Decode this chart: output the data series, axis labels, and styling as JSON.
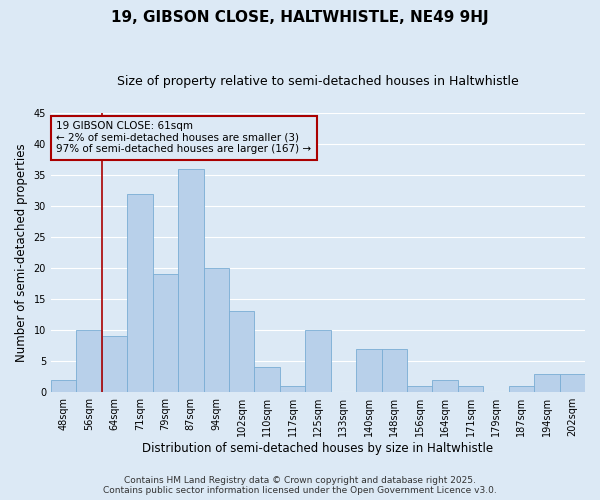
{
  "title": "19, GIBSON CLOSE, HALTWHISTLE, NE49 9HJ",
  "subtitle": "Size of property relative to semi-detached houses in Haltwhistle",
  "xlabel": "Distribution of semi-detached houses by size in Haltwhistle",
  "ylabel": "Number of semi-detached properties",
  "categories": [
    "48sqm",
    "56sqm",
    "64sqm",
    "71sqm",
    "79sqm",
    "87sqm",
    "94sqm",
    "102sqm",
    "110sqm",
    "117sqm",
    "125sqm",
    "133sqm",
    "140sqm",
    "148sqm",
    "156sqm",
    "164sqm",
    "171sqm",
    "179sqm",
    "187sqm",
    "194sqm",
    "202sqm"
  ],
  "values": [
    2,
    10,
    9,
    32,
    19,
    36,
    20,
    13,
    4,
    1,
    10,
    0,
    7,
    7,
    1,
    2,
    1,
    0,
    1,
    3,
    3
  ],
  "bar_color": "#b8d0ea",
  "bar_edge_color": "#7aadd4",
  "background_color": "#dce9f5",
  "grid_color": "#ffffff",
  "vline_color": "#aa0000",
  "annotation_title": "19 GIBSON CLOSE: 61sqm",
  "annotation_line1": "← 2% of semi-detached houses are smaller (3)",
  "annotation_line2": "97% of semi-detached houses are larger (167) →",
  "annotation_box_color": "#aa0000",
  "ylim": [
    0,
    45
  ],
  "yticks": [
    0,
    5,
    10,
    15,
    20,
    25,
    30,
    35,
    40,
    45
  ],
  "footer": "Contains HM Land Registry data © Crown copyright and database right 2025.\nContains public sector information licensed under the Open Government Licence v3.0.",
  "title_fontsize": 11,
  "subtitle_fontsize": 9,
  "xlabel_fontsize": 8.5,
  "ylabel_fontsize": 8.5,
  "tick_fontsize": 7,
  "annotation_fontsize": 7.5,
  "footer_fontsize": 6.5,
  "vline_x_index": 1.5
}
